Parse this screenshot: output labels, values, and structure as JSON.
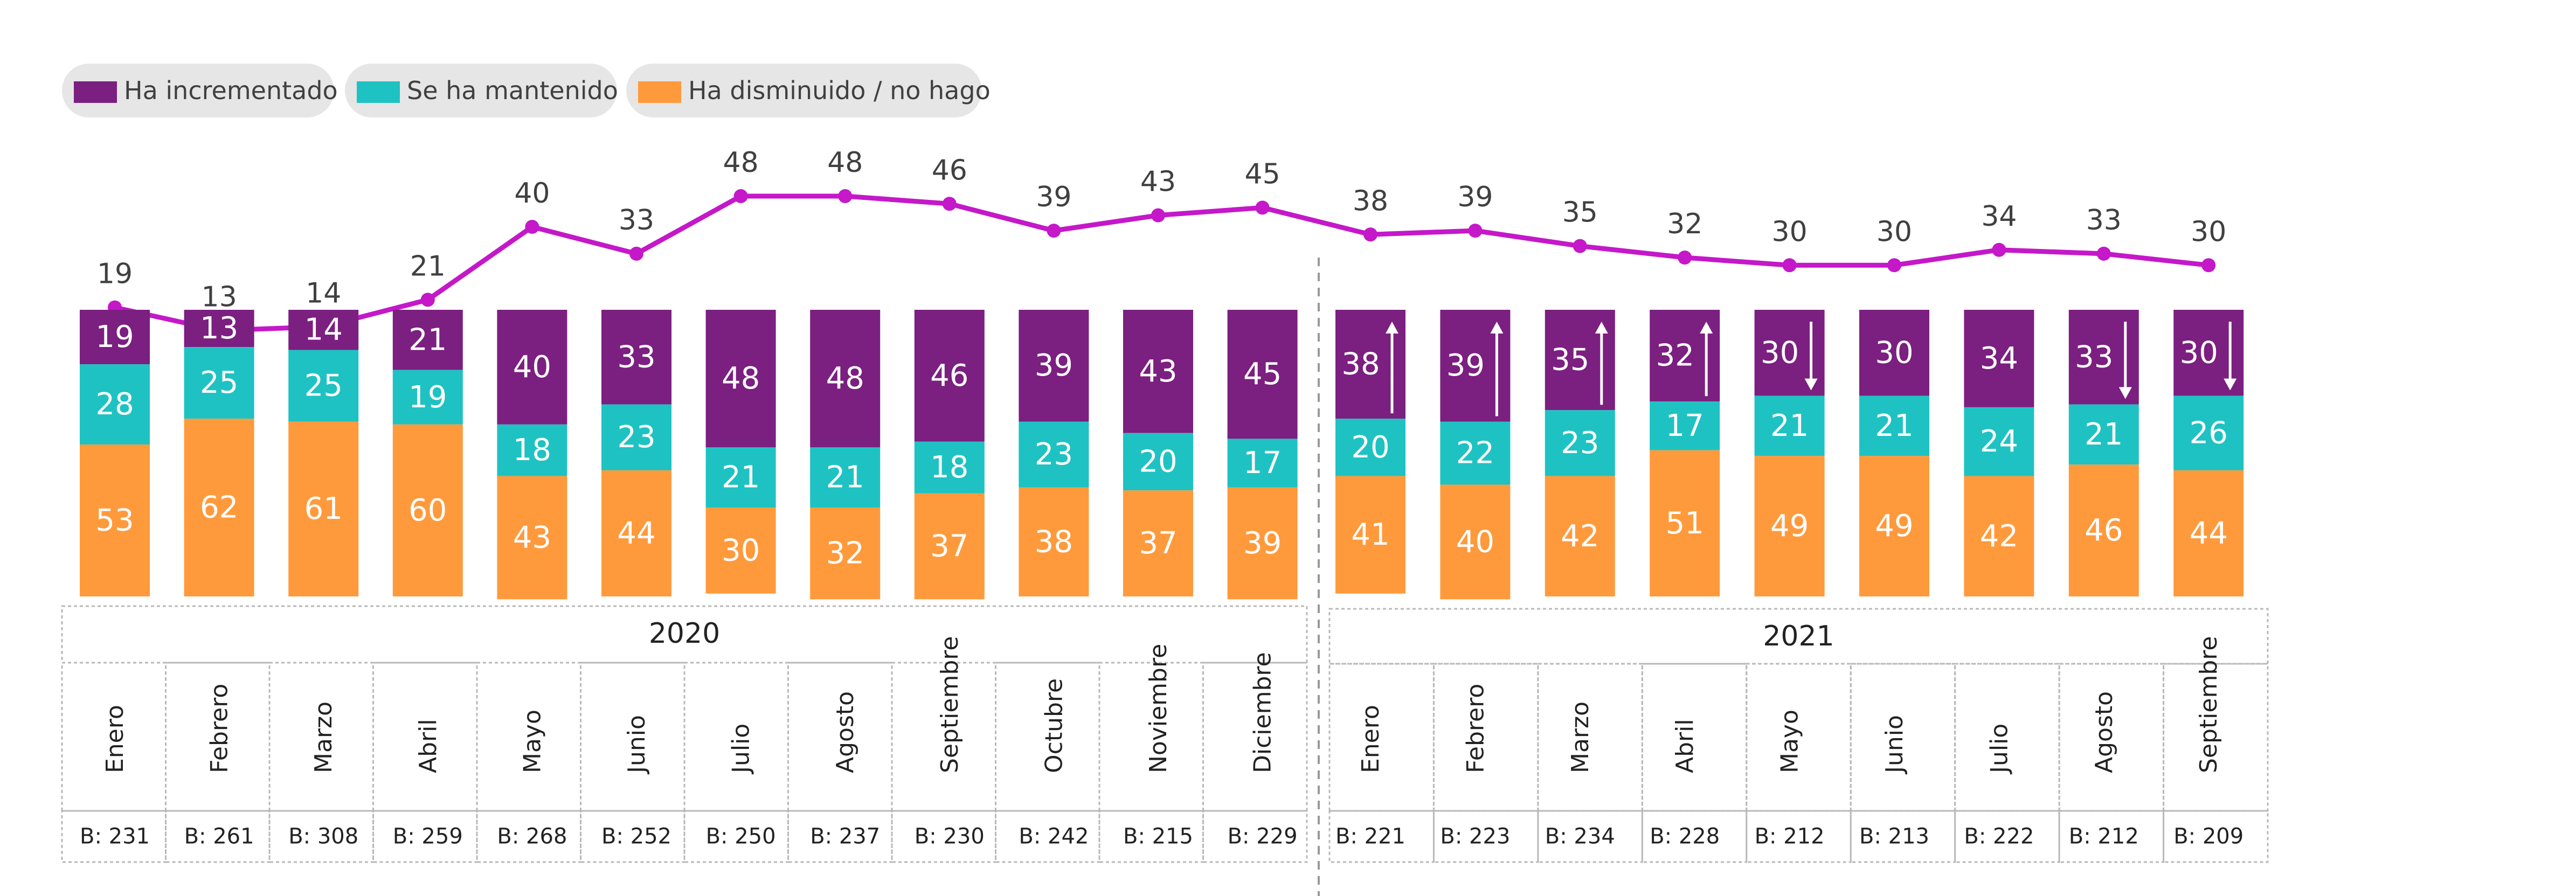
{
  "chart_data": {
    "type": "bar",
    "stacked": true,
    "colors": {
      "increased": "#7b1f80",
      "maintained": "#1fc2c2",
      "decreased": "#ff9a3c",
      "line": "#c418c9",
      "arrow": "#ffffff"
    },
    "legend": [
      {
        "key": "increased",
        "label": "Ha incrementado"
      },
      {
        "key": "maintained",
        "label": "Se ha mantenido"
      },
      {
        "key": "decreased",
        "label": "Ha disminuido / no hago"
      }
    ],
    "groups": [
      {
        "year": "2020",
        "months": [
          "Enero",
          "Febrero",
          "Marzo",
          "Abril",
          "Mayo",
          "Junio",
          "Julio",
          "Agosto",
          "Septiembre",
          "Octubre",
          "Noviembre",
          "Diciembre"
        ],
        "bases": [
          "B: 231",
          "B: 261",
          "B: 308",
          "B: 259",
          "B: 268",
          "B: 252",
          "B: 250",
          "B: 237",
          "B: 230",
          "B: 242",
          "B: 215",
          "B: 229"
        ]
      },
      {
        "year": "2021",
        "months": [
          "Enero",
          "Febrero",
          "Marzo",
          "Abril",
          "Mayo",
          "Junio",
          "Julio",
          "Agosto",
          "Septiembre"
        ],
        "bases": [
          "B: 221",
          "B: 223",
          "B: 234",
          "B: 228",
          "B: 212",
          "B: 213",
          "B: 222",
          "B: 212",
          "B: 209"
        ]
      }
    ],
    "series": [
      {
        "name": "Ha incrementado",
        "key": "increased",
        "values": [
          19,
          13,
          14,
          21,
          40,
          33,
          48,
          48,
          46,
          39,
          43,
          45,
          38,
          39,
          35,
          32,
          30,
          30,
          34,
          33,
          30
        ]
      },
      {
        "name": "Se ha mantenido",
        "key": "maintained",
        "values": [
          28,
          25,
          25,
          19,
          18,
          23,
          21,
          21,
          18,
          23,
          20,
          17,
          20,
          22,
          23,
          17,
          21,
          21,
          24,
          21,
          26
        ]
      },
      {
        "name": "Ha disminuido / no hago",
        "key": "decreased",
        "values": [
          53,
          62,
          61,
          60,
          43,
          44,
          30,
          32,
          37,
          38,
          37,
          39,
          41,
          40,
          42,
          51,
          49,
          49,
          42,
          46,
          44
        ]
      }
    ],
    "line_series": {
      "name": "Ha incrementado",
      "values": [
        19,
        13,
        14,
        21,
        40,
        33,
        48,
        48,
        46,
        39,
        43,
        45,
        38,
        39,
        35,
        32,
        30,
        30,
        34,
        33,
        30
      ]
    },
    "trend_arrows": [
      "",
      "",
      "",
      "",
      "",
      "",
      "",
      "",
      "",
      "",
      "",
      "",
      "up",
      "up",
      "up",
      "up",
      "down",
      "",
      "",
      "down",
      "down"
    ],
    "ylim": [
      0,
      100
    ]
  }
}
